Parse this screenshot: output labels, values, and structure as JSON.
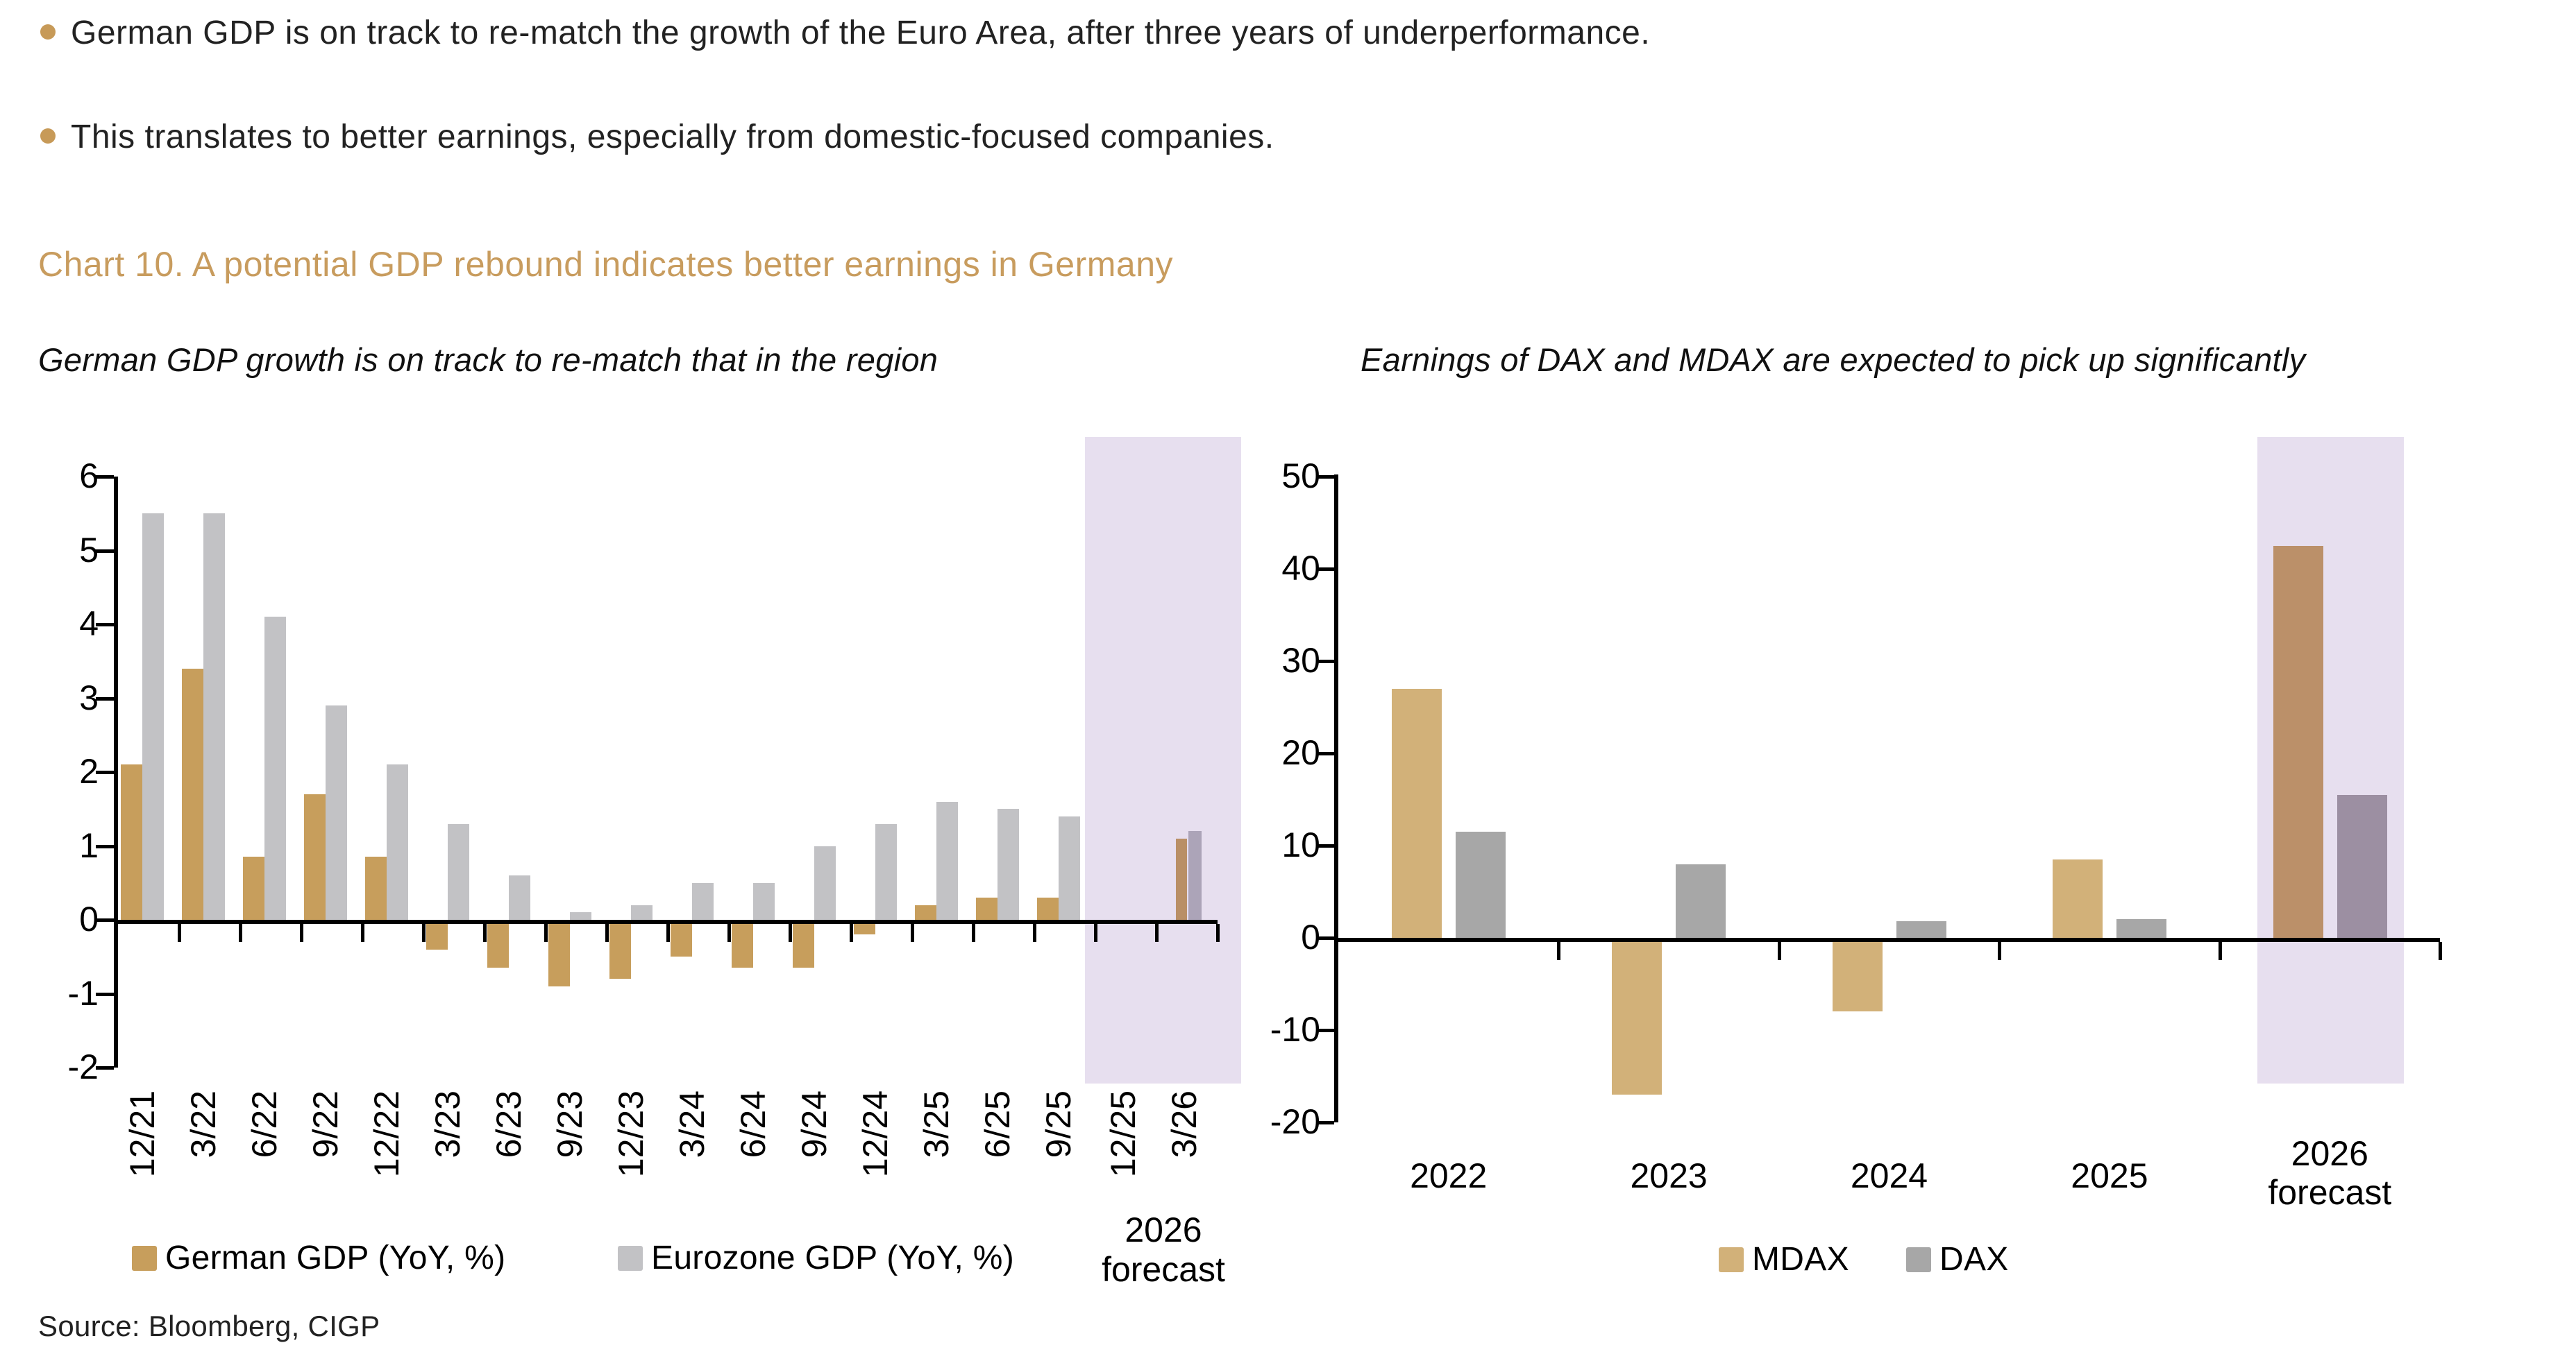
{
  "page": {
    "bullets": [
      "German GDP is on track to re-match the growth of the Euro Area, after three years of underperformance.",
      "This translates to better earnings, especially from domestic-focused companies."
    ],
    "heading": "Chart 10. A potential GDP rebound indicates better earnings in Germany",
    "source": "Source: Bloomberg, CIGP",
    "colors": {
      "accent_gold": "#C89C5E",
      "bullet_dot": "#C79A58",
      "text": "#1F1F1F",
      "forecast_band": "#E7DFEF"
    }
  },
  "chart_data": [
    {
      "id": "gdp",
      "type": "bar",
      "subtitle": "German GDP growth is on track to re-match that in the region",
      "categories": [
        "12/21",
        "3/22",
        "6/22",
        "9/22",
        "12/22",
        "3/23",
        "6/23",
        "9/23",
        "12/23",
        "3/24",
        "6/24",
        "9/24",
        "12/24",
        "3/25",
        "6/25",
        "9/25",
        "12/25",
        "3/26"
      ],
      "series": [
        {
          "name": "German GDP (YoY, %)",
          "color": "#C79E5C",
          "forecast_color": "#B98F66",
          "values": [
            2.1,
            3.4,
            0.85,
            1.7,
            0.85,
            -0.4,
            -0.65,
            -0.9,
            -0.8,
            -0.5,
            -0.65,
            -0.65,
            -0.2,
            0.2,
            0.3,
            0.3,
            null,
            1.1
          ]
        },
        {
          "name": "Eurozone GDP (YoY, %)",
          "color": "#C2C2C5",
          "forecast_color": "#ACA4B8",
          "values": [
            5.5,
            5.5,
            4.1,
            2.9,
            2.1,
            1.3,
            0.6,
            0.1,
            0.2,
            0.5,
            0.5,
            1.0,
            1.3,
            1.6,
            1.5,
            1.4,
            null,
            1.2
          ]
        }
      ],
      "y_ticks": [
        6,
        5,
        4,
        3,
        2,
        1,
        0,
        -1,
        -2
      ],
      "ylim": [
        -2,
        6
      ],
      "xlabel": "",
      "ylabel": "",
      "grid": false,
      "legend_position": "bottom",
      "forecast": {
        "categories": [
          "12/25",
          "3/26"
        ],
        "label_lines": [
          "2026",
          "forecast"
        ],
        "band_color": "#E7DFEF"
      }
    },
    {
      "id": "earnings",
      "type": "bar",
      "subtitle": "Earnings of DAX and MDAX are expected to pick up significantly",
      "categories": [
        "2022",
        "2023",
        "2024",
        "2025",
        "2026 forecast"
      ],
      "series": [
        {
          "name": "MDAX",
          "color": "#D2B179",
          "forecast_color": "#BB9069",
          "values": [
            27,
            -17,
            -8,
            8.5,
            42.5
          ]
        },
        {
          "name": "DAX",
          "color": "#A7A7A7",
          "forecast_color": "#9C8FA2",
          "values": [
            11.5,
            8,
            1.8,
            2,
            15.5
          ]
        }
      ],
      "y_ticks": [
        50,
        40,
        30,
        20,
        10,
        0,
        -10,
        -20
      ],
      "ylim": [
        -20,
        50
      ],
      "xlabel": "",
      "ylabel": "",
      "grid": false,
      "legend_position": "bottom",
      "forecast": {
        "categories": [
          "2026 forecast"
        ],
        "label_lines": [
          "2026",
          "forecast"
        ],
        "band_color": "#E7DFEF"
      }
    }
  ]
}
